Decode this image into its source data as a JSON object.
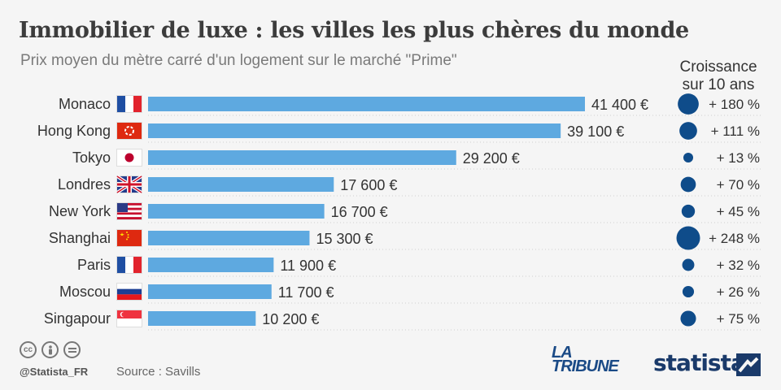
{
  "title": "Immobilier de luxe : les villes les plus chères du monde",
  "subtitle": "Prix moyen du mètre carré d'un logement sur le marché \"Prime\"",
  "growth_header": [
    "Croissance",
    "sur 10 ans"
  ],
  "chart_data": {
    "type": "bar",
    "orientation": "horizontal",
    "categories": [
      "Monaco",
      "Hong Kong",
      "Tokyo",
      "Londres",
      "New York",
      "Shanghai",
      "Paris",
      "Moscou",
      "Singapour"
    ],
    "flags": [
      "france",
      "hong-kong",
      "japan",
      "uk",
      "usa",
      "china",
      "france",
      "russia",
      "singapore"
    ],
    "values": [
      41400,
      39100,
      29200,
      17600,
      16700,
      15300,
      11900,
      11700,
      10200
    ],
    "value_labels": [
      "41 400 €",
      "39 100 €",
      "29 200 €",
      "17 600 €",
      "16 700 €",
      "15 300 €",
      "11 900 €",
      "11 700 €",
      "10 200 €"
    ],
    "growth": [
      180,
      111,
      13,
      70,
      45,
      248,
      32,
      26,
      75
    ],
    "growth_labels": [
      "+ 180 %",
      "+ 111 %",
      "+ 13 %",
      "+ 70 %",
      "+ 45 %",
      "+ 248 %",
      "+ 32 %",
      "+ 26 %",
      "+ 75 %"
    ],
    "xlim": [
      0,
      41400
    ],
    "bar_color": "#5ea9e0",
    "bubble_color": "#0f4c8a",
    "grid": false
  },
  "footer": {
    "icons": [
      "cc-icon",
      "person-icon",
      "equals-icon"
    ],
    "handle": "@Statista_FR",
    "source": "Source : Savills",
    "tribune_line1": "LA",
    "tribune_line2": "TRIBUNE",
    "statista": "statista"
  }
}
